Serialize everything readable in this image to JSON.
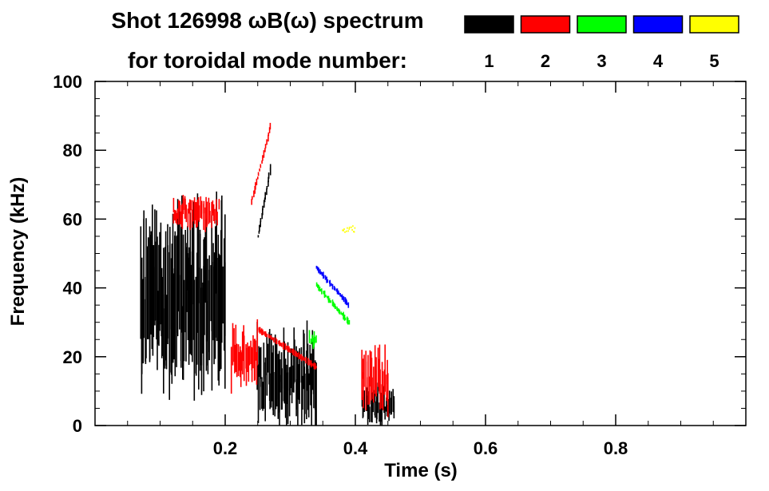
{
  "chart_data": {
    "type": "heatmap",
    "title_line1": "Shot 126998 ωB(ω) spectrum",
    "title_line2": "for toroidal mode number:",
    "xlabel": "Time (s)",
    "ylabel": "Frequency (kHz)",
    "xlim": [
      0.0,
      1.0
    ],
    "ylim": [
      0,
      100
    ],
    "x_ticks": [
      {
        "value": 0.2,
        "label": "0.2"
      },
      {
        "value": 0.4,
        "label": "0.4"
      },
      {
        "value": 0.6,
        "label": "0.6"
      },
      {
        "value": 0.8,
        "label": "0.8"
      }
    ],
    "y_ticks": [
      {
        "value": 0,
        "label": "0"
      },
      {
        "value": 20,
        "label": "20"
      },
      {
        "value": 40,
        "label": "40"
      },
      {
        "value": 60,
        "label": "60"
      },
      {
        "value": 80,
        "label": "80"
      },
      {
        "value": 100,
        "label": "100"
      }
    ],
    "legend": [
      {
        "n": "1",
        "color": "#000000"
      },
      {
        "n": "2",
        "color": "#ff0000"
      },
      {
        "n": "3",
        "color": "#00ff00"
      },
      {
        "n": "4",
        "color": "#0000ff"
      },
      {
        "n": "5",
        "color": "#ffff00"
      }
    ],
    "series": [
      {
        "name": "n=1",
        "mode": "1",
        "color": "#000000",
        "regions": [
          {
            "t": [
              0.07,
              0.2
            ],
            "f": [
              15,
              58
            ],
            "note": "broadband bursts"
          },
          {
            "t": [
              0.25,
              0.34
            ],
            "f": [
              3,
              25
            ],
            "note": "low-frequency bursts"
          },
          {
            "t": [
              0.25,
              0.27
            ],
            "f": [
              55,
              75
            ],
            "note": "chirp"
          },
          {
            "t": [
              0.41,
              0.46
            ],
            "f": [
              1,
              10
            ],
            "note": "low-frequency burst"
          }
        ]
      },
      {
        "name": "n=2",
        "mode": "2",
        "color": "#ff0000",
        "regions": [
          {
            "t": [
              0.12,
              0.19
            ],
            "f": [
              58,
              66
            ],
            "note": "band"
          },
          {
            "t": [
              0.24,
              0.27
            ],
            "f": [
              65,
              87
            ],
            "note": "chirp"
          },
          {
            "t": [
              0.21,
              0.25
            ],
            "f": [
              13,
              27
            ],
            "note": "patch"
          },
          {
            "t": [
              0.25,
              0.34
            ],
            "f": [
              17,
              28
            ],
            "note": "down-chirp"
          },
          {
            "t": [
              0.41,
              0.45
            ],
            "f": [
              5,
              20
            ],
            "note": "patch"
          }
        ]
      },
      {
        "name": "n=3",
        "mode": "3",
        "color": "#00ff00",
        "regions": [
          {
            "t": [
              0.34,
              0.39
            ],
            "f": [
              30,
              41
            ],
            "note": "down-chirp"
          },
          {
            "t": [
              0.33,
              0.34
            ],
            "f": [
              23,
              27
            ],
            "note": "patch"
          }
        ]
      },
      {
        "name": "n=4",
        "mode": "4",
        "color": "#0000ff",
        "regions": [
          {
            "t": [
              0.34,
              0.39
            ],
            "f": [
              35,
              46
            ],
            "note": "down-chirp"
          }
        ]
      },
      {
        "name": "n=5",
        "mode": "5",
        "color": "#ffff00",
        "regions": [
          {
            "t": [
              0.38,
              0.4
            ],
            "f": [
              56,
              58
            ],
            "note": "trace"
          }
        ]
      }
    ]
  }
}
